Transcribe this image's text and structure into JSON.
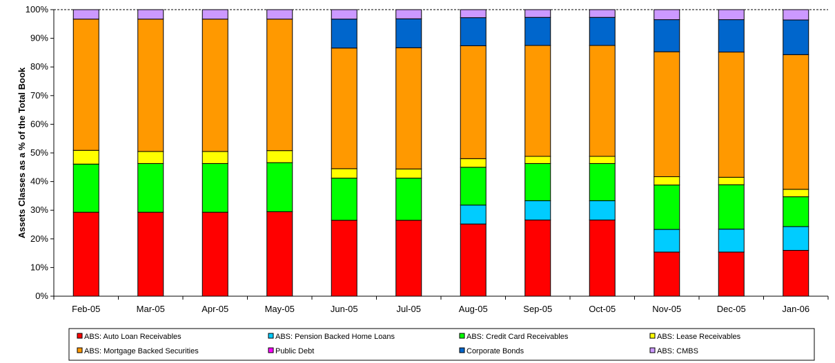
{
  "chart_data": {
    "type": "bar",
    "stacked": true,
    "percent": true,
    "ylabel": "Assets Classes as a % of the Total Book",
    "xlabel": "",
    "ylim": [
      0,
      100
    ],
    "y_ticks": [
      "0%",
      "10%",
      "20%",
      "30%",
      "40%",
      "50%",
      "60%",
      "70%",
      "80%",
      "90%",
      "100%"
    ],
    "grid": "horizontal dashed at 100% only",
    "legend_position": "bottom",
    "categories": [
      "Feb-05",
      "Mar-05",
      "Apr-05",
      "May-05",
      "Jun-05",
      "Jul-05",
      "Aug-05",
      "Sep-05",
      "Oct-05",
      "Nov-05",
      "Dec-05",
      "Jan-06"
    ],
    "series": [
      {
        "name": "ABS: Auto Loan Receivables",
        "color": "#ff0000",
        "values": [
          29.3,
          29.3,
          29.3,
          29.5,
          26.5,
          26.5,
          25.2,
          26.6,
          26.6,
          15.4,
          15.4,
          16.0
        ]
      },
      {
        "name": "ABS: Pension Backed Home Loans",
        "color": "#00ccff",
        "values": [
          0,
          0,
          0,
          0,
          0,
          0,
          6.6,
          6.7,
          6.7,
          7.9,
          8.0,
          8.3
        ]
      },
      {
        "name": "ABS: Credit Card Receivables",
        "color": "#00ff00",
        "values": [
          16.8,
          17.0,
          17.0,
          17.1,
          14.7,
          14.7,
          13.2,
          13.0,
          13.0,
          15.5,
          15.5,
          10.4
        ]
      },
      {
        "name": "ABS: Lease Receivables",
        "color": "#ffff00",
        "values": [
          4.8,
          4.2,
          4.2,
          4.2,
          3.3,
          3.2,
          3.0,
          2.5,
          2.5,
          2.9,
          2.6,
          2.6
        ]
      },
      {
        "name": "ABS: Mortgage Backed Securities",
        "color": "#ff9900",
        "values": [
          45.8,
          46.2,
          46.2,
          45.9,
          42.1,
          42.3,
          39.4,
          38.7,
          38.7,
          43.6,
          43.7,
          47.0
        ]
      },
      {
        "name": "Public Debt",
        "color": "#ff00ff",
        "values": [
          0,
          0,
          0,
          0,
          0,
          0,
          0,
          0,
          0,
          0,
          0,
          0
        ]
      },
      {
        "name": "Corporate Bonds",
        "color": "#0066cc",
        "values": [
          0,
          0,
          0,
          0,
          10.1,
          10.1,
          9.8,
          9.8,
          9.8,
          11.2,
          11.3,
          12.1
        ]
      },
      {
        "name": "ABS: CMBS",
        "color": "#cc99ff",
        "values": [
          3.3,
          3.3,
          3.3,
          3.3,
          3.3,
          3.2,
          2.8,
          2.7,
          2.7,
          3.5,
          3.5,
          3.6
        ]
      }
    ]
  }
}
